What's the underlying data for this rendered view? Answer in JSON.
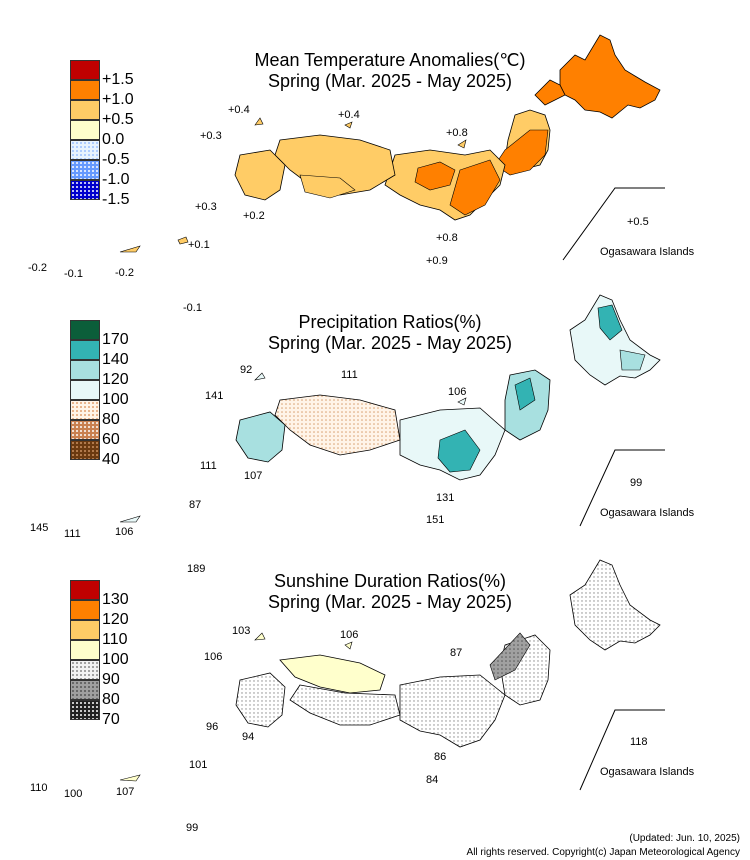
{
  "temperature": {
    "title_line1": "Mean Temperature Anomalies(℃)",
    "title_line2": "Spring (Mar. 2025 - May 2025)",
    "legend": [
      {
        "label": "+1.5",
        "color": "#c00000",
        "pattern": "solid"
      },
      {
        "label": "+1.0",
        "color": "#ff8000",
        "pattern": "solid"
      },
      {
        "label": "+0.5",
        "color": "#ffcc66",
        "pattern": "solid"
      },
      {
        "label": "0.0",
        "color": "#ffffcc",
        "pattern": "solid"
      },
      {
        "label": "-0.5",
        "color": "#e8f4ff",
        "pattern": "dots"
      },
      {
        "label": "-1.0",
        "color": "#6699ff",
        "pattern": "dots"
      },
      {
        "label": "-1.5",
        "color": "#0000cc",
        "pattern": "dots"
      }
    ],
    "station_values": {
      "tsushima": "+0.4",
      "oki": "+0.4",
      "goto": "+0.3",
      "sado": "+0.8",
      "yakushima": "+0.3",
      "tanegashima": "+0.2",
      "hachijojima": "+0.8",
      "miyakejima": "+0.9",
      "amami": "+0.1",
      "okinawa": "-0.2",
      "miyako": "-0.1",
      "yonaguni": "-0.2",
      "minamidaito": "-0.1",
      "chichijima": "+0.5"
    },
    "ogasawara_label": "Ogasawara Islands"
  },
  "precipitation": {
    "title_line1": "Precipitation Ratios(%)",
    "title_line2": "Spring (Mar. 2025 - May 2025)",
    "legend": [
      {
        "label": "170",
        "color": "#0b5e3a",
        "pattern": "solid"
      },
      {
        "label": "140",
        "color": "#33b3b3",
        "pattern": "solid"
      },
      {
        "label": "120",
        "color": "#a8e0e0",
        "pattern": "solid"
      },
      {
        "label": "100",
        "color": "#e8f8f8",
        "pattern": "solid"
      },
      {
        "label": "80",
        "color": "#f5d8b8",
        "pattern": "dots"
      },
      {
        "label": "60",
        "color": "#c88050",
        "pattern": "dots"
      },
      {
        "label": "40",
        "color": "#6b3a10",
        "pattern": "dots"
      }
    ],
    "station_values": {
      "tsushima": "92",
      "oki": "111",
      "goto": "141",
      "sado": "106",
      "yakushima": "111",
      "tanegashima": "107",
      "hachijojima": "131",
      "miyakejima": "151",
      "amami": "87",
      "okinawa": "145",
      "miyako": "111",
      "yonaguni": "106",
      "minamidaito": "189",
      "chichijima": "99"
    },
    "ogasawara_label": "Ogasawara Islands"
  },
  "sunshine": {
    "title_line1": "Sunshine Duration Ratios(%)",
    "title_line2": "Spring (Mar. 2025 - May 2025)",
    "legend": [
      {
        "label": "130",
        "color": "#c00000",
        "pattern": "solid"
      },
      {
        "label": "120",
        "color": "#ff8000",
        "pattern": "solid"
      },
      {
        "label": "110",
        "color": "#ffcc66",
        "pattern": "solid"
      },
      {
        "label": "100",
        "color": "#ffffcc",
        "pattern": "solid"
      },
      {
        "label": "90",
        "color": "#f2f2f2",
        "pattern": "dots"
      },
      {
        "label": "80",
        "color": "#a0a0a0",
        "pattern": "dots"
      },
      {
        "label": "70",
        "color": "#222222",
        "pattern": "dots"
      }
    ],
    "station_values": {
      "tsushima": "103",
      "oki": "106",
      "goto": "106",
      "sado": "87",
      "yakushima": "96",
      "tanegashima": "94",
      "hachijojima": "86",
      "miyakejima": "84",
      "amami": "101",
      "okinawa": "110",
      "miyako": "100",
      "yonaguni": "107",
      "minamidaito": "99",
      "chichijima": "118"
    },
    "ogasawara_label": "Ogasawara Islands"
  },
  "footer": {
    "updated": "(Updated: Jun. 10, 2025)",
    "copyright": "All rights reserved. Copyright(c) Japan Meteorological Agency"
  }
}
